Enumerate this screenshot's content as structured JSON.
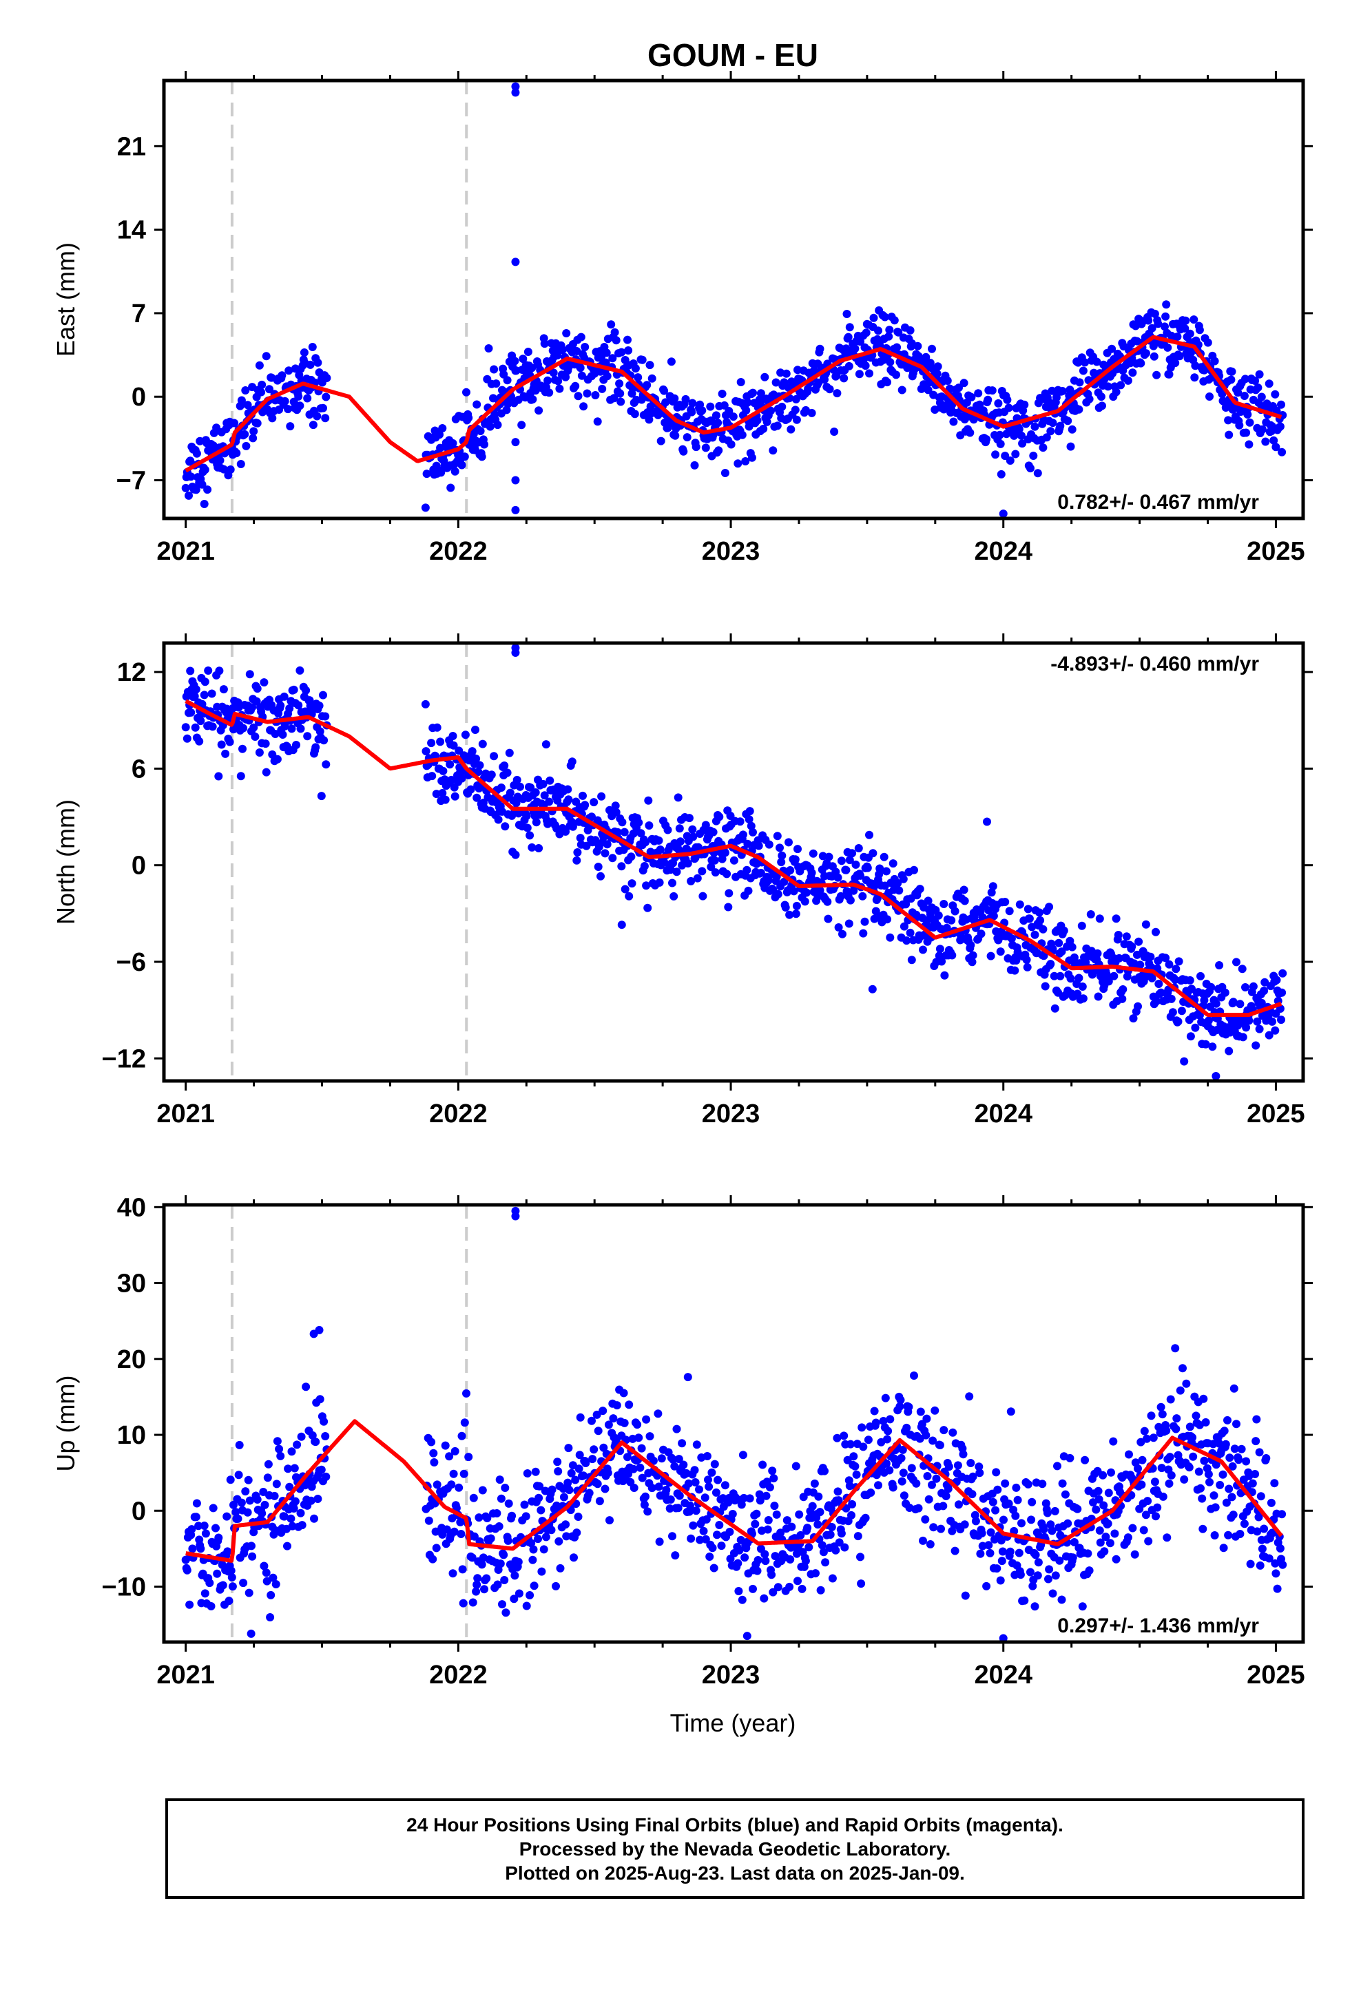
{
  "title": "GOUM - EU",
  "xlabel": "Time (year)",
  "x_ticks": [
    "2021",
    "2022",
    "2023",
    "2024",
    "2025"
  ],
  "colors": {
    "points": "#0000ff",
    "fit": "#ff0000",
    "offset_lines": "#cccccc",
    "frame": "#000000"
  },
  "offset_epochs": [
    2021.17,
    2022.03
  ],
  "caption": [
    "24 Hour Positions Using Final Orbits (blue) and Rapid Orbits (magenta).",
    "Processed by the Nevada Geodetic Laboratory.",
    "Plotted on 2025-Aug-23. Last data on 2025-Jan-09."
  ],
  "chart_data": [
    {
      "type": "scatter",
      "component": "east",
      "ylabel": "East (mm)",
      "xlim": [
        2020.92,
        2025.1
      ],
      "ylim": [
        -10.2,
        26.5
      ],
      "y_ticks": [
        -7,
        0,
        7,
        14,
        21
      ],
      "rate_label": "0.782+/- 0.467 mm/yr",
      "rate_position": "bottom-right",
      "series": [
        {
          "role": "daily_positions",
          "color": "#0000ff",
          "gap_years": [
            [
              2021.52,
              2021.88
            ]
          ],
          "outliers": [
            [
              2022.21,
              25.5
            ],
            [
              2022.21,
              26.0
            ],
            [
              2022.21,
              11.3
            ],
            [
              2022.21,
              -7.0
            ],
            [
              2022.21,
              -9.5
            ],
            [
              2022.21,
              -3.8
            ],
            [
              2024.0,
              -9.8
            ],
            [
              2021.88,
              -9.3
            ]
          ]
        },
        {
          "role": "model_fit",
          "color": "#ff0000",
          "x": [
            2021.0,
            2021.17,
            2021.18,
            2021.3,
            2021.43,
            2021.6,
            2021.75,
            2021.85,
            2022.0,
            2022.03,
            2022.04,
            2022.2,
            2022.4,
            2022.6,
            2022.8,
            2022.9,
            2023.0,
            2023.2,
            2023.4,
            2023.55,
            2023.7,
            2023.85,
            2024.0,
            2024.2,
            2024.4,
            2024.55,
            2024.7,
            2024.85,
            2025.02
          ],
          "y": [
            -6.2,
            -4.0,
            -3.0,
            -0.2,
            1.1,
            0.0,
            -3.8,
            -5.4,
            -4.4,
            -3.8,
            -2.8,
            0.6,
            3.2,
            2.1,
            -2.0,
            -3.0,
            -2.6,
            0.1,
            3.0,
            4.0,
            2.5,
            -1.0,
            -2.5,
            -1.2,
            2.5,
            5.0,
            4.2,
            -0.5,
            -1.7
          ]
        }
      ]
    },
    {
      "type": "scatter",
      "component": "north",
      "ylabel": "North (mm)",
      "xlim": [
        2020.92,
        2025.1
      ],
      "ylim": [
        -13.4,
        13.8
      ],
      "y_ticks": [
        -12,
        -6,
        0,
        6,
        12
      ],
      "rate_label": "-4.893+/- 0.460 mm/yr",
      "rate_position": "top-right",
      "series": [
        {
          "role": "daily_positions",
          "color": "#0000ff",
          "gap_years": [
            [
              2021.52,
              2021.88
            ]
          ],
          "outliers": [
            [
              2021.88,
              10.0
            ],
            [
              2022.21,
              13.2
            ],
            [
              2022.21,
              13.5
            ],
            [
              2023.94,
              2.7
            ],
            [
              2023.52,
              -7.7
            ],
            [
              2024.78,
              -13.1
            ],
            [
              2022.6,
              -3.7
            ]
          ]
        },
        {
          "role": "model_fit",
          "color": "#ff0000",
          "x": [
            2021.0,
            2021.1,
            2021.17,
            2021.18,
            2021.3,
            2021.45,
            2021.6,
            2021.75,
            2021.9,
            2022.0,
            2022.03,
            2022.2,
            2022.4,
            2022.55,
            2022.7,
            2022.85,
            2023.0,
            2023.1,
            2023.25,
            2023.45,
            2023.55,
            2023.75,
            2023.95,
            2024.1,
            2024.25,
            2024.4,
            2024.55,
            2024.75,
            2024.9,
            2025.02
          ],
          "y": [
            10.2,
            9.3,
            8.7,
            9.4,
            8.9,
            9.2,
            8.0,
            6.0,
            6.5,
            6.7,
            6.0,
            3.5,
            3.5,
            2.0,
            0.5,
            0.7,
            1.2,
            0.5,
            -1.3,
            -1.2,
            -1.8,
            -4.5,
            -3.4,
            -4.7,
            -6.4,
            -6.3,
            -6.6,
            -9.3,
            -9.3,
            -8.6
          ]
        }
      ]
    },
    {
      "type": "scatter",
      "component": "up",
      "ylabel": "Up (mm)",
      "xlim": [
        2020.92,
        2025.1
      ],
      "ylim": [
        -17.3,
        40.3
      ],
      "y_ticks": [
        -10,
        0,
        10,
        20,
        30,
        40
      ],
      "rate_label": "0.297+/- 1.436 mm/yr",
      "rate_position": "bottom-right",
      "series": [
        {
          "role": "daily_positions",
          "color": "#0000ff",
          "gap_years": [
            [
              2021.52,
              2021.88
            ]
          ],
          "outliers": [
            [
              2022.21,
              38.8
            ],
            [
              2022.21,
              39.5
            ],
            [
              2021.47,
              23.3
            ],
            [
              2021.49,
              23.8
            ],
            [
              2021.24,
              -16.2
            ],
            [
              2023.06,
              -16.5
            ],
            [
              2024.0,
              -16.8
            ]
          ]
        },
        {
          "role": "model_fit",
          "color": "#ff0000",
          "x": [
            2021.0,
            2021.17,
            2021.18,
            2021.3,
            2021.45,
            2021.62,
            2021.8,
            2021.95,
            2022.03,
            2022.04,
            2022.2,
            2022.4,
            2022.6,
            2022.85,
            2023.1,
            2023.3,
            2023.45,
            2023.62,
            2023.8,
            2024.0,
            2024.2,
            2024.4,
            2024.62,
            2024.8,
            2025.02
          ],
          "y": [
            -5.6,
            -6.6,
            -2.0,
            -1.5,
            5.0,
            11.8,
            6.5,
            0.5,
            -1.0,
            -4.4,
            -5.0,
            0.5,
            9.0,
            2.0,
            -4.3,
            -4.0,
            2.5,
            9.3,
            4.0,
            -3.0,
            -4.4,
            0.0,
            9.6,
            6.5,
            -3.3
          ]
        }
      ]
    }
  ]
}
